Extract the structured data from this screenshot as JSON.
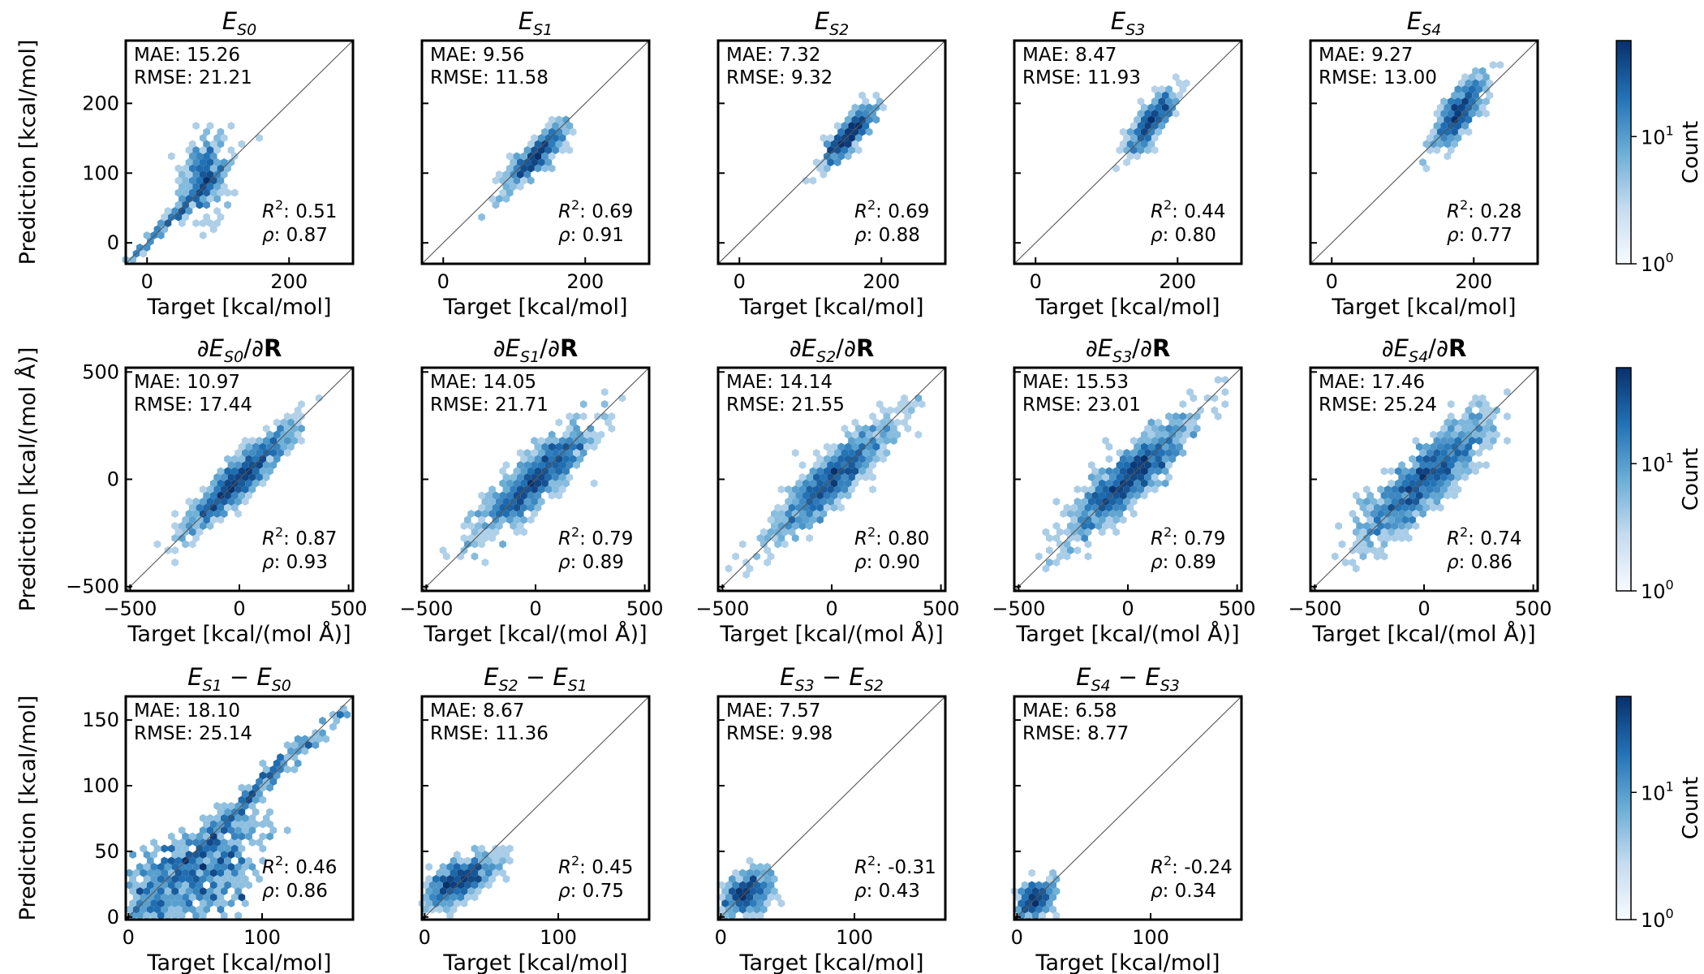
{
  "chart_data": {
    "type": "scatter",
    "style": "hexbin density",
    "colorbar": {
      "label": "Count",
      "scale": "log",
      "ticks": [
        "10^0",
        "10^1"
      ],
      "colormap": "Blues"
    },
    "panels": [
      {
        "title": "E_S0",
        "xlabel": "Target [kcal/mol]",
        "ylabel": "Prediction [kcal/mol]",
        "xlim": [
          -30,
          290
        ],
        "ylim": [
          -30,
          290
        ],
        "xticks": [
          0,
          200
        ],
        "yticks": [
          0,
          100,
          200
        ],
        "mae": "MAE: 15.26",
        "rmse": "RMSE: 21.21",
        "r2": "0.51",
        "rho": "0.87",
        "clouds": [
          {
            "cx": 80,
            "cy": 95,
            "sx": 15,
            "sy": 28,
            "rho": 0.25,
            "n": 320
          },
          {
            "cx": 40,
            "cy": 40,
            "sx": 40,
            "sy": 40,
            "rho": 0.99,
            "n": 180
          }
        ]
      },
      {
        "title": "E_S1",
        "xlabel": "Target [kcal/mol]",
        "ylabel": "",
        "xlim": [
          -30,
          290
        ],
        "ylim": [
          -30,
          290
        ],
        "xticks": [
          0,
          200
        ],
        "yticks": [
          0,
          100,
          200
        ],
        "mae": "MAE: 9.56",
        "rmse": "RMSE: 11.58",
        "r2": "0.69",
        "rho": "0.91",
        "clouds": [
          {
            "cx": 130,
            "cy": 125,
            "sx": 22,
            "sy": 24,
            "rho": 0.88,
            "n": 420
          }
        ]
      },
      {
        "title": "E_S2",
        "xlabel": "Target [kcal/mol]",
        "ylabel": "",
        "xlim": [
          -30,
          290
        ],
        "ylim": [
          -30,
          290
        ],
        "xticks": [
          0,
          200
        ],
        "yticks": [
          0,
          100,
          200
        ],
        "mae": "MAE: 7.32",
        "rmse": "RMSE: 9.32",
        "r2": "0.69",
        "rho": "0.88",
        "clouds": [
          {
            "cx": 155,
            "cy": 155,
            "sx": 17,
            "sy": 20,
            "rho": 0.85,
            "n": 420
          }
        ]
      },
      {
        "title": "E_S3",
        "xlabel": "Target [kcal/mol]",
        "ylabel": "",
        "xlim": [
          -30,
          290
        ],
        "ylim": [
          -30,
          290
        ],
        "xticks": [
          0,
          200
        ],
        "yticks": [
          0,
          100,
          200
        ],
        "mae": "MAE: 8.47",
        "rmse": "RMSE: 11.93",
        "r2": "0.44",
        "rho": "0.80",
        "clouds": [
          {
            "cx": 165,
            "cy": 175,
            "sx": 17,
            "sy": 22,
            "rho": 0.8,
            "n": 400
          }
        ]
      },
      {
        "title": "E_S4",
        "xlabel": "Target [kcal/mol]",
        "ylabel": "",
        "xlim": [
          -30,
          290
        ],
        "ylim": [
          -30,
          290
        ],
        "xticks": [
          0,
          200
        ],
        "yticks": [
          0,
          100,
          200
        ],
        "mae": "MAE: 9.27",
        "rmse": "RMSE: 13.00",
        "r2": "0.28",
        "rho": "0.77",
        "clouds": [
          {
            "cx": 178,
            "cy": 185,
            "sx": 17,
            "sy": 25,
            "rho": 0.75,
            "n": 400
          }
        ]
      },
      {
        "title": "∂E_S0/∂R",
        "xlabel": "Target [kcal/(mol Å)]",
        "ylabel": "Prediction [kcal/(mol Å)]",
        "xlim": [
          -520,
          520
        ],
        "ylim": [
          -520,
          520
        ],
        "xticks": [
          -500,
          0,
          500
        ],
        "yticks": [
          -500,
          0,
          500
        ],
        "mae": "MAE: 10.97",
        "rmse": "RMSE: 17.44",
        "r2": "0.87",
        "rho": "0.93",
        "clouds": [
          {
            "cx": 0,
            "cy": 0,
            "sx": 120,
            "sy": 120,
            "rho": 0.92,
            "n": 900
          }
        ]
      },
      {
        "title": "∂E_S1/∂R",
        "xlabel": "Target [kcal/(mol Å)]",
        "ylabel": "",
        "xlim": [
          -520,
          520
        ],
        "ylim": [
          -520,
          520
        ],
        "xticks": [
          -500,
          0,
          500
        ],
        "yticks": [
          -500,
          0,
          500
        ],
        "mae": "MAE: 14.05",
        "rmse": "RMSE: 21.71",
        "r2": "0.79",
        "rho": "0.89",
        "clouds": [
          {
            "cx": 0,
            "cy": 0,
            "sx": 130,
            "sy": 130,
            "rho": 0.88,
            "n": 900
          }
        ]
      },
      {
        "title": "∂E_S2/∂R",
        "xlabel": "Target [kcal/(mol Å)]",
        "ylabel": "",
        "xlim": [
          -520,
          520
        ],
        "ylim": [
          -520,
          520
        ],
        "xticks": [
          -500,
          0,
          500
        ],
        "yticks": [
          -500,
          0,
          500
        ],
        "mae": "MAE: 14.14",
        "rmse": "RMSE: 21.55",
        "r2": "0.80",
        "rho": "0.90",
        "clouds": [
          {
            "cx": 0,
            "cy": 0,
            "sx": 130,
            "sy": 130,
            "rho": 0.88,
            "n": 900
          }
        ]
      },
      {
        "title": "∂E_S3/∂R",
        "xlabel": "Target [kcal/(mol Å)]",
        "ylabel": "",
        "xlim": [
          -520,
          520
        ],
        "ylim": [
          -520,
          520
        ],
        "xticks": [
          -500,
          0,
          500
        ],
        "yticks": [
          -500,
          0,
          500
        ],
        "mae": "MAE: 15.53",
        "rmse": "RMSE: 23.01",
        "r2": "0.79",
        "rho": "0.89",
        "clouds": [
          {
            "cx": 0,
            "cy": 0,
            "sx": 140,
            "sy": 140,
            "rho": 0.88,
            "n": 900
          }
        ]
      },
      {
        "title": "∂E_S4/∂R",
        "xlabel": "Target [kcal/(mol Å)]",
        "ylabel": "",
        "xlim": [
          -520,
          520
        ],
        "ylim": [
          -520,
          520
        ],
        "xticks": [
          -500,
          0,
          500
        ],
        "yticks": [
          -500,
          0,
          500
        ],
        "mae": "MAE: 17.46",
        "rmse": "RMSE: 25.24",
        "r2": "0.74",
        "rho": "0.86",
        "clouds": [
          {
            "cx": 0,
            "cy": 0,
            "sx": 140,
            "sy": 140,
            "rho": 0.85,
            "n": 900
          }
        ]
      },
      {
        "title": "E_S1 − E_S0",
        "xlabel": "Target [kcal/mol]",
        "ylabel": "Prediction [kcal/mol]",
        "xlim": [
          -2,
          168
        ],
        "ylim": [
          -2,
          168
        ],
        "xticks": [
          0,
          100
        ],
        "yticks": [
          0,
          50,
          100,
          150
        ],
        "mae": "MAE: 18.10",
        "rmse": "RMSE: 25.14",
        "r2": "0.46",
        "rho": "0.86",
        "clouds": [
          {
            "cx": 60,
            "cy": 35,
            "sx": 22,
            "sy": 22,
            "rho": 0.5,
            "n": 380
          },
          {
            "cx": 75,
            "cy": 75,
            "sx": 45,
            "sy": 45,
            "rho": 0.99,
            "n": 260
          },
          {
            "cx": 15,
            "cy": 20,
            "sx": 12,
            "sy": 18,
            "rho": 0.2,
            "n": 120
          }
        ]
      },
      {
        "title": "E_S2 − E_S1",
        "xlabel": "Target [kcal/mol]",
        "ylabel": "",
        "xlim": [
          -2,
          168
        ],
        "ylim": [
          -2,
          168
        ],
        "xticks": [
          0,
          100
        ],
        "yticks": [
          0,
          50,
          100,
          150
        ],
        "mae": "MAE: 8.67",
        "rmse": "RMSE: 11.36",
        "r2": "0.45",
        "rho": "0.75",
        "clouds": [
          {
            "cx": 25,
            "cy": 28,
            "sx": 15,
            "sy": 10,
            "rho": 0.7,
            "n": 420
          }
        ]
      },
      {
        "title": "E_S3 − E_S2",
        "xlabel": "Target [kcal/mol]",
        "ylabel": "",
        "xlim": [
          -2,
          168
        ],
        "ylim": [
          -2,
          168
        ],
        "xticks": [
          0,
          100
        ],
        "yticks": [
          0,
          50,
          100,
          150
        ],
        "mae": "MAE: 7.57",
        "rmse": "RMSE: 9.98",
        "r2": "-0.31",
        "rho": "0.43",
        "clouds": [
          {
            "cx": 18,
            "cy": 18,
            "sx": 10,
            "sy": 9,
            "rho": 0.4,
            "n": 380
          }
        ]
      },
      {
        "title": "E_S4 − E_S3",
        "xlabel": "Target [kcal/mol]",
        "ylabel": "",
        "xlim": [
          -2,
          168
        ],
        "ylim": [
          -2,
          168
        ],
        "xticks": [
          0,
          100
        ],
        "yticks": [
          0,
          50,
          100,
          150
        ],
        "mae": "MAE: 6.58",
        "rmse": "RMSE: 8.77",
        "r2": "-0.24",
        "rho": "0.34",
        "clouds": [
          {
            "cx": 12,
            "cy": 12,
            "sx": 8,
            "sy": 8,
            "rho": 0.35,
            "n": 360
          }
        ]
      }
    ]
  }
}
